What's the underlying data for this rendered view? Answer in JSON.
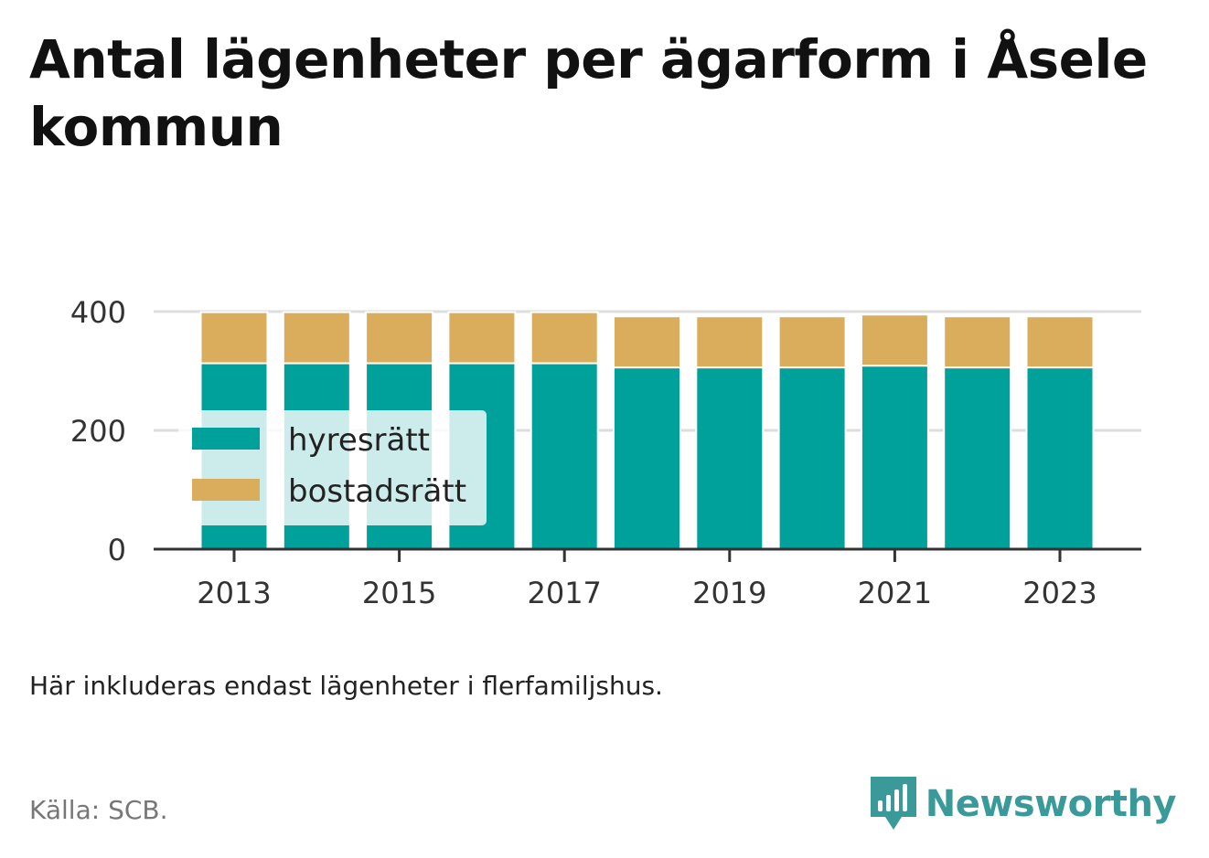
{
  "header": {
    "title": "Antal lägenheter per ägarform i Åsele kommun"
  },
  "footer": {
    "note": "Här inkluderas endast lägenheter i flerfamiljshus.",
    "source": "Källa: SCB.",
    "brand": "Newsworthy",
    "brand_icon": "bar-chart-speech-bubble-icon"
  },
  "colors": {
    "hyresratt": "#00a19a",
    "bostadsratt": "#d9ad5b",
    "brand": "#3a9a9a",
    "grid": "#dddddd",
    "axis": "#333333"
  },
  "chart_data": {
    "type": "bar",
    "stacked": true,
    "categories": [
      "2013",
      "2014",
      "2015",
      "2016",
      "2017",
      "2018",
      "2019",
      "2020",
      "2021",
      "2022",
      "2023"
    ],
    "x_tick_labels": [
      "2013",
      "2015",
      "2017",
      "2019",
      "2021",
      "2023"
    ],
    "series": [
      {
        "name": "hyresrätt",
        "color": "#00a19a",
        "values": [
          313,
          313,
          313,
          313,
          313,
          306,
          306,
          306,
          309,
          306,
          306
        ]
      },
      {
        "name": "bostadsrätt",
        "color": "#d9ad5b",
        "values": [
          86,
          86,
          86,
          86,
          86,
          86,
          86,
          86,
          86,
          86,
          86
        ]
      }
    ],
    "title": "Antal lägenheter per ägarform i Åsele kommun",
    "xlabel": "",
    "ylabel": "",
    "ylim": [
      0,
      400
    ],
    "y_ticks": [
      0,
      200,
      400
    ],
    "grid": true,
    "legend": {
      "placement": "inside-left",
      "entries": [
        "hyresrätt",
        "bostadsrätt"
      ]
    }
  }
}
